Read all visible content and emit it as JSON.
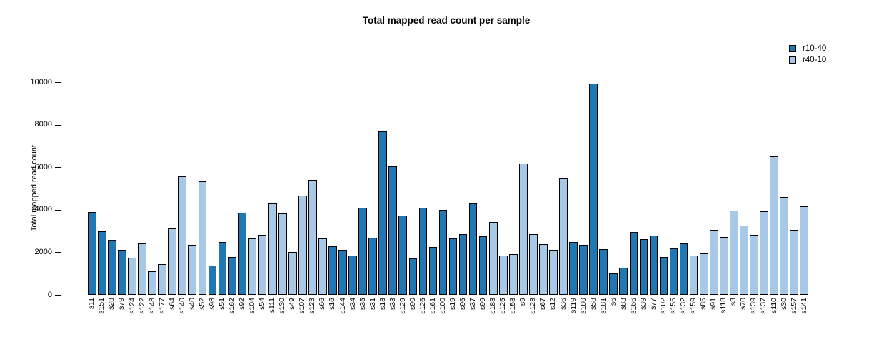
{
  "chart_data": {
    "type": "bar",
    "title": "Total mapped read count per sample",
    "xlabel": "",
    "ylabel": "Total mapped read count",
    "ylim": [
      0,
      10000
    ],
    "yticks": [
      0,
      2000,
      4000,
      6000,
      8000,
      10000
    ],
    "grid": false,
    "legend_position": "top-right",
    "legend": [
      {
        "name": "r10-40",
        "color": "#1F78B4"
      },
      {
        "name": "r40-10",
        "color": "#A8C8E8"
      }
    ],
    "categories": [
      "s11",
      "s151",
      "s28",
      "s79",
      "s124",
      "s122",
      "s148",
      "s177",
      "s64",
      "s140",
      "s40",
      "s52",
      "s98",
      "s51",
      "s162",
      "s92",
      "s104",
      "s54",
      "s111",
      "s130",
      "s49",
      "s107",
      "s123",
      "s66",
      "s16",
      "s144",
      "s34",
      "s35",
      "s31",
      "s18",
      "s33",
      "s129",
      "s90",
      "s126",
      "s161",
      "s100",
      "s19",
      "s96",
      "s37",
      "s99",
      "s188",
      "s125",
      "s158",
      "s9",
      "s128",
      "s67",
      "s12",
      "s36",
      "s119",
      "s180",
      "s58",
      "s181",
      "s6",
      "s83",
      "s166",
      "s39",
      "s77",
      "s102",
      "s155",
      "s132",
      "s159",
      "s85",
      "s91",
      "s118",
      "s3",
      "s70",
      "s139",
      "s137",
      "s110",
      "s30",
      "s157",
      "s141"
    ],
    "values": [
      3890,
      2980,
      2580,
      2120,
      1740,
      2430,
      1110,
      1440,
      3120,
      5560,
      2340,
      5330,
      1370,
      2470,
      1780,
      3850,
      2640,
      2820,
      4310,
      3830,
      2000,
      4680,
      5390,
      2640,
      2280,
      2120,
      1850,
      4080,
      2680,
      7670,
      6030,
      3740,
      1710,
      4100,
      2250,
      4000,
      2650,
      2840,
      4300,
      2760,
      3430,
      1860,
      1910,
      6160,
      2850,
      2370,
      2120,
      5480,
      2490,
      2340,
      9940,
      2150,
      1000,
      1270,
      2960,
      2610,
      2790,
      1780,
      2180,
      2420,
      1840,
      1940,
      3040,
      2710,
      3950,
      3250,
      2820,
      3920,
      6500,
      4600,
      3050,
      4160
    ],
    "groups": [
      "r10-40",
      "r10-40",
      "r10-40",
      "r10-40",
      "r40-10",
      "r40-10",
      "r40-10",
      "r40-10",
      "r40-10",
      "r40-10",
      "r40-10",
      "r40-10",
      "r10-40",
      "r10-40",
      "r10-40",
      "r10-40",
      "r40-10",
      "r40-10",
      "r40-10",
      "r40-10",
      "r40-10",
      "r40-10",
      "r40-10",
      "r40-10",
      "r10-40",
      "r10-40",
      "r10-40",
      "r10-40",
      "r10-40",
      "r10-40",
      "r10-40",
      "r10-40",
      "r10-40",
      "r10-40",
      "r10-40",
      "r10-40",
      "r10-40",
      "r10-40",
      "r10-40",
      "r10-40",
      "r40-10",
      "r40-10",
      "r40-10",
      "r40-10",
      "r40-10",
      "r40-10",
      "r40-10",
      "r40-10",
      "r10-40",
      "r10-40",
      "r10-40",
      "r10-40",
      "r10-40",
      "r10-40",
      "r10-40",
      "r10-40",
      "r10-40",
      "r10-40",
      "r10-40",
      "r10-40",
      "r40-10",
      "r40-10",
      "r40-10",
      "r40-10",
      "r40-10",
      "r40-10",
      "r40-10",
      "r40-10",
      "r40-10",
      "r40-10",
      "r40-10",
      "r40-10"
    ],
    "colors": {
      "r10-40": "#1F78B4",
      "r40-10": "#A8C8E8"
    }
  }
}
